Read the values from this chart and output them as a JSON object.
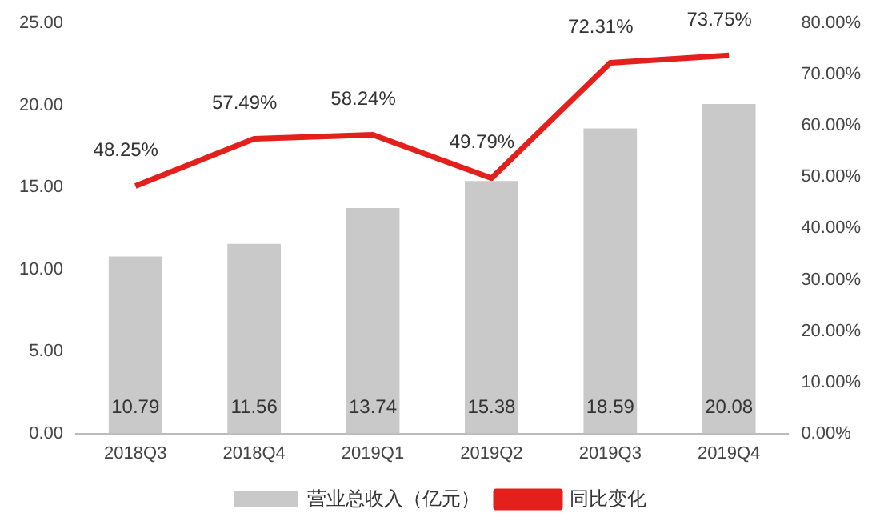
{
  "chart_data": {
    "type": "bar",
    "categories": [
      "2018Q3",
      "2018Q4",
      "2019Q1",
      "2019Q2",
      "2019Q3",
      "2019Q4"
    ],
    "series": [
      {
        "name": "营业总收入（亿元）",
        "color": "#c9c9c9",
        "values": [
          10.79,
          11.56,
          13.74,
          15.38,
          18.59,
          20.08
        ],
        "value_labels": [
          "10.79",
          "11.56",
          "13.74",
          "15.38",
          "18.59",
          "20.08"
        ]
      },
      {
        "name": "同比变化",
        "type": "line",
        "axis": "y2",
        "color": "#e3201b",
        "values": [
          48.25,
          57.49,
          58.24,
          49.79,
          72.31,
          73.75
        ],
        "value_labels": [
          "48.25%",
          "57.49%",
          "58.24%",
          "49.79%",
          "72.31%",
          "73.75%"
        ]
      }
    ],
    "ylim": [
      0,
      25
    ],
    "yticks": [
      {
        "value": 0,
        "label": "0.00"
      },
      {
        "value": 5,
        "label": "5.00"
      },
      {
        "value": 10,
        "label": "10.00"
      },
      {
        "value": 15,
        "label": "15.00"
      },
      {
        "value": 20,
        "label": "20.00"
      },
      {
        "value": 25,
        "label": "25.00"
      }
    ],
    "y2lim": [
      0,
      80
    ],
    "y2ticks": [
      {
        "value": 0,
        "label": "0.00%"
      },
      {
        "value": 10,
        "label": "10.00%"
      },
      {
        "value": 20,
        "label": "20.00%"
      },
      {
        "value": 30,
        "label": "30.00%"
      },
      {
        "value": 40,
        "label": "40.00%"
      },
      {
        "value": 50,
        "label": "50.00%"
      },
      {
        "value": 60,
        "label": "60.00%"
      },
      {
        "value": 70,
        "label": "70.00%"
      },
      {
        "value": 80,
        "label": "80.00%"
      }
    ],
    "grid": false,
    "legend": "bottom",
    "marker": "none",
    "line_style": "solid"
  }
}
